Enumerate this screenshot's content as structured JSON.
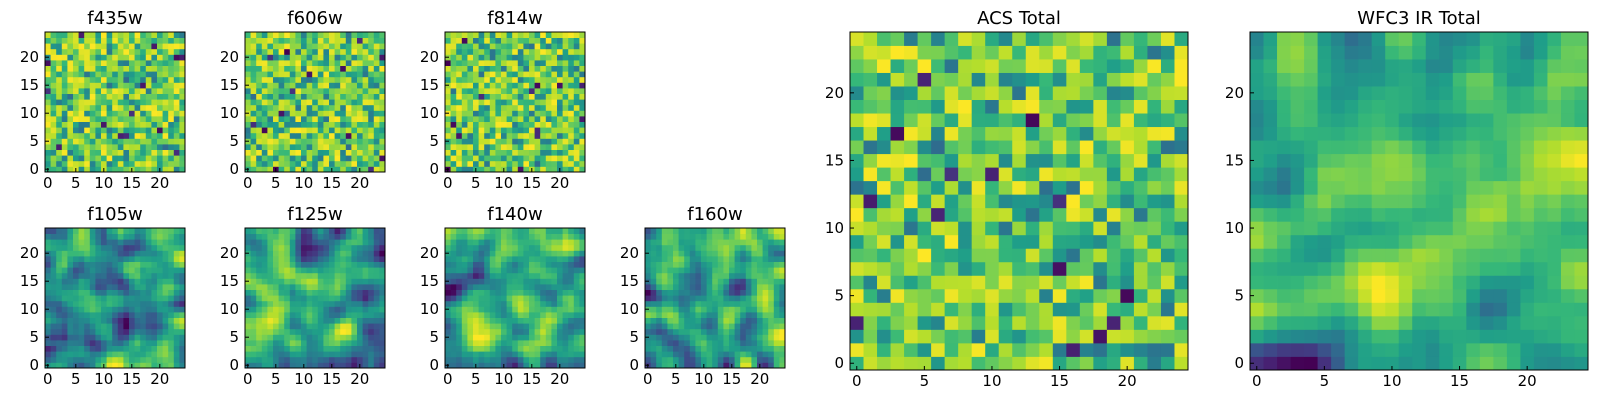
{
  "chart_data": [
    {
      "type": "heatmap",
      "title": "f435w",
      "grid_size": 25,
      "xticks": [
        0,
        5,
        10,
        15,
        20
      ],
      "yticks": [
        0,
        5,
        10,
        15,
        20
      ],
      "seed": 11,
      "style": "noise",
      "colormap": "viridis"
    },
    {
      "type": "heatmap",
      "title": "f606w",
      "grid_size": 25,
      "xticks": [
        0,
        5,
        10,
        15,
        20
      ],
      "yticks": [
        0,
        5,
        10,
        15,
        20
      ],
      "seed": 23,
      "style": "noise",
      "colormap": "viridis"
    },
    {
      "type": "heatmap",
      "title": "f814w",
      "grid_size": 25,
      "xticks": [
        0,
        5,
        10,
        15,
        20
      ],
      "yticks": [
        0,
        5,
        10,
        15,
        20
      ],
      "seed": 37,
      "style": "noise",
      "colormap": "viridis"
    },
    {
      "type": "heatmap",
      "title": "f105w",
      "grid_size": 25,
      "xticks": [
        0,
        5,
        10,
        15,
        20
      ],
      "yticks": [
        0,
        5,
        10,
        15,
        20
      ],
      "seed": 41,
      "style": "smooth",
      "colormap": "viridis"
    },
    {
      "type": "heatmap",
      "title": "f125w",
      "grid_size": 25,
      "xticks": [
        0,
        5,
        10,
        15,
        20
      ],
      "yticks": [
        0,
        5,
        10,
        15,
        20
      ],
      "seed": 53,
      "style": "smooth",
      "colormap": "viridis"
    },
    {
      "type": "heatmap",
      "title": "f140w",
      "grid_size": 25,
      "xticks": [
        0,
        5,
        10,
        15,
        20
      ],
      "yticks": [
        0,
        5,
        10,
        15,
        20
      ],
      "seed": 67,
      "style": "smooth",
      "colormap": "viridis"
    },
    {
      "type": "heatmap",
      "title": "f160w",
      "grid_size": 25,
      "xticks": [
        0,
        5,
        10,
        15,
        20
      ],
      "yticks": [
        0,
        5,
        10,
        15,
        20
      ],
      "seed": 79,
      "style": "smooth",
      "colormap": "viridis"
    },
    {
      "type": "heatmap",
      "title": "ACS Total",
      "grid_size": 25,
      "xticks": [
        0,
        5,
        10,
        15,
        20
      ],
      "yticks": [
        0,
        5,
        10,
        15,
        20
      ],
      "seed": 83,
      "style": "noise",
      "colormap": "viridis"
    },
    {
      "type": "heatmap",
      "title": "WFC3 IR Total",
      "grid_size": 25,
      "xticks": [
        0,
        5,
        10,
        15,
        20
      ],
      "yticks": [
        0,
        5,
        10,
        15,
        20
      ],
      "seed": 97,
      "style": "smooth",
      "colormap": "viridis"
    }
  ]
}
